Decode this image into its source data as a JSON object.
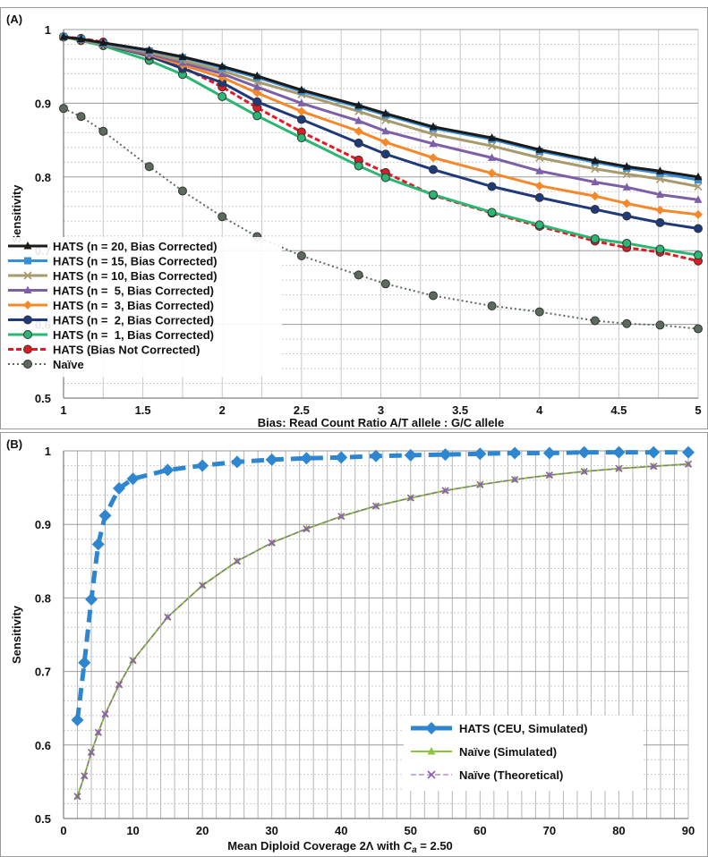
{
  "chart_data": [
    {
      "type": "line",
      "panel_label": "(A)",
      "xlabel": "Bias: Read Count Ratio A/T allele : G/C allele",
      "ylabel": "Sensitivity",
      "xlim": [
        1,
        5
      ],
      "ylim": [
        0.5,
        1
      ],
      "xticks": [
        1,
        1.5,
        2,
        2.5,
        3,
        3.5,
        4,
        4.5,
        5
      ],
      "xtick_labels": [
        "1",
        "1.5",
        "2",
        "2.5",
        "3",
        "3.5",
        "4",
        "4.5",
        "5"
      ],
      "yticks": [
        0.5,
        0.6,
        0.7,
        0.8,
        0.9,
        1
      ],
      "ytick_labels": [
        "0.5",
        "0.6",
        "0.7",
        "0.8",
        "0.9",
        "1"
      ],
      "grid": true,
      "legend_position": "bottom-left",
      "x": [
        1,
        1.11,
        1.25,
        1.54,
        1.75,
        2,
        2.22,
        2.5,
        2.86,
        3.03,
        3.33,
        3.7,
        4,
        4.35,
        4.55,
        4.76,
        5
      ],
      "series": [
        {
          "name": "HATS (n = 20, Bias Corrected)",
          "color": "#1a1a1a",
          "marker": "triangle",
          "dash": "solid",
          "values": [
            0.99,
            0.987,
            0.982,
            0.972,
            0.963,
            0.95,
            0.937,
            0.918,
            0.897,
            0.886,
            0.868,
            0.853,
            0.837,
            0.822,
            0.814,
            0.808,
            0.8
          ]
        },
        {
          "name": "HATS (n = 15, Bias Corrected)",
          "color": "#3a8fd4",
          "marker": "square",
          "dash": "solid",
          "values": [
            0.99,
            0.987,
            0.981,
            0.971,
            0.962,
            0.948,
            0.935,
            0.916,
            0.895,
            0.884,
            0.866,
            0.851,
            0.835,
            0.82,
            0.812,
            0.805,
            0.796
          ]
        },
        {
          "name": "HATS (n = 10, Bias Corrected)",
          "color": "#a89a6c",
          "marker": "x",
          "dash": "solid",
          "values": [
            0.99,
            0.986,
            0.98,
            0.969,
            0.958,
            0.944,
            0.929,
            0.912,
            0.889,
            0.877,
            0.858,
            0.842,
            0.826,
            0.811,
            0.804,
            0.797,
            0.787
          ]
        },
        {
          "name": "HATS (n =  5, Bias Corrected)",
          "color": "#7d5fa8",
          "marker": "triangle",
          "dash": "solid",
          "values": [
            0.99,
            0.986,
            0.98,
            0.967,
            0.955,
            0.94,
            0.922,
            0.9,
            0.876,
            0.862,
            0.845,
            0.826,
            0.808,
            0.793,
            0.786,
            0.776,
            0.769
          ]
        },
        {
          "name": "HATS (n =  3, Bias Corrected)",
          "color": "#f5882a",
          "marker": "diamond",
          "dash": "solid",
          "values": [
            0.99,
            0.986,
            0.98,
            0.966,
            0.952,
            0.935,
            0.914,
            0.889,
            0.862,
            0.847,
            0.826,
            0.805,
            0.788,
            0.774,
            0.764,
            0.755,
            0.749
          ]
        },
        {
          "name": "HATS (n =  2, Bias Corrected)",
          "color": "#1f3a7a",
          "marker": "circle",
          "dash": "solid",
          "values": [
            0.99,
            0.986,
            0.98,
            0.964,
            0.947,
            0.928,
            0.902,
            0.878,
            0.846,
            0.831,
            0.81,
            0.787,
            0.772,
            0.756,
            0.747,
            0.738,
            0.73
          ]
        },
        {
          "name": "HATS (n =  1, Bias Corrected)",
          "color": "#2bb673",
          "marker": "circle",
          "dash": "solid",
          "values": [
            0.99,
            0.985,
            0.978,
            0.958,
            0.939,
            0.909,
            0.883,
            0.853,
            0.815,
            0.799,
            0.776,
            0.752,
            0.735,
            0.716,
            0.71,
            0.702,
            0.694
          ]
        },
        {
          "name": "HATS (Bias Not Corrected)",
          "color": "#e01b24",
          "marker": "circle",
          "dash": "dashed",
          "values": [
            0.99,
            0.988,
            0.983,
            0.967,
            0.949,
            0.922,
            0.894,
            0.861,
            0.823,
            0.806,
            0.775,
            0.751,
            0.733,
            0.713,
            0.704,
            0.698,
            0.686
          ]
        },
        {
          "name": "Naïve",
          "color": "#5c6b5e",
          "marker": "circle",
          "dash": "dotted",
          "values": [
            0.893,
            0.882,
            0.862,
            0.814,
            0.781,
            0.746,
            0.719,
            0.693,
            0.667,
            0.655,
            0.639,
            0.625,
            0.617,
            0.605,
            0.601,
            0.599,
            0.594
          ]
        }
      ]
    },
    {
      "type": "line",
      "panel_label": "(B)",
      "xlabel_main": "Mean Diploid Coverage 2Λ with ",
      "xlabel_var": "C",
      "xlabel_sub": "a",
      "xlabel_tail": " = 2.50",
      "ylabel": "Sensitivity",
      "xlim": [
        0,
        90
      ],
      "ylim": [
        0.5,
        1
      ],
      "xticks": [
        0,
        10,
        20,
        30,
        40,
        50,
        60,
        70,
        80,
        90
      ],
      "xtick_labels": [
        "0",
        "10",
        "20",
        "30",
        "40",
        "50",
        "60",
        "70",
        "80",
        "90"
      ],
      "yticks": [
        0.5,
        0.6,
        0.7,
        0.8,
        0.9,
        1
      ],
      "ytick_labels": [
        "0.5",
        "0.6",
        "0.7",
        "0.8",
        "0.9",
        "1"
      ],
      "grid": true,
      "minor_vertical_grid_step": 2,
      "legend_position": "bottom-right",
      "series": [
        {
          "name": "HATS (CEU, Simulated)",
          "color": "#2e86d0",
          "marker": "diamond",
          "dash": "dashed",
          "width": 5,
          "x": [
            2,
            3,
            4,
            5,
            6,
            8,
            10,
            15,
            20,
            25,
            30,
            35,
            40,
            45,
            50,
            55,
            60,
            65,
            70,
            75,
            80,
            85,
            90
          ],
          "values": [
            0.634,
            0.712,
            0.798,
            0.873,
            0.912,
            0.949,
            0.962,
            0.974,
            0.98,
            0.985,
            0.988,
            0.99,
            0.991,
            0.993,
            0.994,
            0.995,
            0.996,
            0.997,
            0.997,
            0.998,
            0.998,
            0.998,
            0.998
          ]
        },
        {
          "name": "Naïve (Simulated)",
          "color": "#8cc63f",
          "marker": "triangle",
          "dash": "solid",
          "width": 2,
          "x": [
            2,
            3,
            4,
            5,
            6,
            8,
            10,
            15,
            20,
            25,
            30,
            35,
            40,
            45,
            50,
            55,
            60,
            65,
            70,
            75,
            80,
            85,
            90
          ],
          "values": [
            0.53,
            0.558,
            0.59,
            0.617,
            0.642,
            0.682,
            0.715,
            0.774,
            0.817,
            0.85,
            0.875,
            0.894,
            0.911,
            0.925,
            0.936,
            0.946,
            0.954,
            0.961,
            0.967,
            0.972,
            0.976,
            0.979,
            0.982
          ]
        },
        {
          "name": "Naïve (Theoretical)",
          "color": "#8e5bb5",
          "marker": "x",
          "dash": "dashed",
          "width": 1,
          "x": [
            2,
            3,
            4,
            5,
            6,
            8,
            10,
            15,
            20,
            25,
            30,
            35,
            40,
            45,
            50,
            55,
            60,
            65,
            70,
            75,
            80,
            85,
            90
          ],
          "values": [
            0.53,
            0.558,
            0.59,
            0.617,
            0.642,
            0.682,
            0.715,
            0.774,
            0.817,
            0.85,
            0.875,
            0.894,
            0.911,
            0.925,
            0.936,
            0.946,
            0.954,
            0.961,
            0.967,
            0.972,
            0.976,
            0.979,
            0.982
          ]
        }
      ]
    }
  ]
}
